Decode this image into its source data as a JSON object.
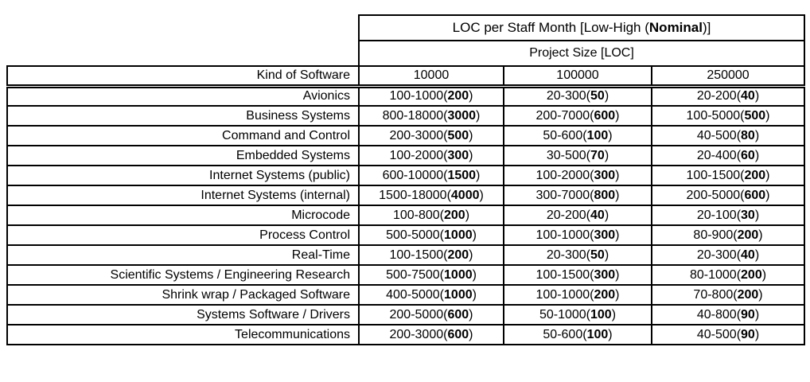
{
  "page": {
    "background_color": "#ffffff",
    "border_color": "#000000",
    "text_color": "#000000"
  },
  "table": {
    "title": {
      "prefix": "LOC per Staff Month [Low-High (",
      "bold": "Nominal",
      "suffix": ")]"
    },
    "subtitle": "Project Size [LOC]",
    "row_header_label": "Kind of Software",
    "column_headers": [
      "10000",
      "100000",
      "250000"
    ],
    "rows": [
      {
        "kind": "Avionics",
        "cells": [
          {
            "range": "100-1000",
            "nominal": "200"
          },
          {
            "range": "20-300",
            "nominal": "50"
          },
          {
            "range": "20-200",
            "nominal": "40"
          }
        ]
      },
      {
        "kind": "Business Systems",
        "cells": [
          {
            "range": "800-18000",
            "nominal": "3000"
          },
          {
            "range": "200-7000",
            "nominal": "600"
          },
          {
            "range": "100-5000",
            "nominal": "500"
          }
        ]
      },
      {
        "kind": "Command and Control",
        "cells": [
          {
            "range": "200-3000",
            "nominal": "500"
          },
          {
            "range": "50-600",
            "nominal": "100"
          },
          {
            "range": "40-500",
            "nominal": "80"
          }
        ]
      },
      {
        "kind": "Embedded Systems",
        "cells": [
          {
            "range": "100-2000",
            "nominal": "300"
          },
          {
            "range": "30-500",
            "nominal": "70"
          },
          {
            "range": "20-400",
            "nominal": "60"
          }
        ]
      },
      {
        "kind": "Internet Systems (public)",
        "cells": [
          {
            "range": "600-10000",
            "nominal": "1500"
          },
          {
            "range": "100-2000",
            "nominal": "300"
          },
          {
            "range": "100-1500",
            "nominal": "200"
          }
        ]
      },
      {
        "kind": "Internet Systems (internal)",
        "cells": [
          {
            "range": "1500-18000",
            "nominal": "4000"
          },
          {
            "range": "300-7000",
            "nominal": "800"
          },
          {
            "range": "200-5000",
            "nominal": "600"
          }
        ]
      },
      {
        "kind": "Microcode",
        "cells": [
          {
            "range": "100-800",
            "nominal": "200"
          },
          {
            "range": "20-200",
            "nominal": "40"
          },
          {
            "range": "20-100",
            "nominal": "30"
          }
        ]
      },
      {
        "kind": "Process Control",
        "cells": [
          {
            "range": "500-5000",
            "nominal": "1000"
          },
          {
            "range": "100-1000",
            "nominal": "300"
          },
          {
            "range": "80-900",
            "nominal": "200"
          }
        ]
      },
      {
        "kind": "Real-Time",
        "cells": [
          {
            "range": "100-1500",
            "nominal": "200"
          },
          {
            "range": "20-300",
            "nominal": "50"
          },
          {
            "range": "20-300",
            "nominal": "40"
          }
        ]
      },
      {
        "kind": "Scientific Systems / Engineering Research",
        "cells": [
          {
            "range": "500-7500",
            "nominal": "1000"
          },
          {
            "range": "100-1500",
            "nominal": "300"
          },
          {
            "range": "80-1000",
            "nominal": "200"
          }
        ]
      },
      {
        "kind": "Shrink wrap / Packaged Software",
        "cells": [
          {
            "range": "400-5000",
            "nominal": "1000"
          },
          {
            "range": "100-1000",
            "nominal": "200"
          },
          {
            "range": "70-800",
            "nominal": "200"
          }
        ]
      },
      {
        "kind": "Systems Software / Drivers",
        "cells": [
          {
            "range": "200-5000",
            "nominal": "600"
          },
          {
            "range": "50-1000",
            "nominal": "100"
          },
          {
            "range": "40-800",
            "nominal": "90"
          }
        ]
      },
      {
        "kind": "Telecommunications",
        "cells": [
          {
            "range": "200-3000",
            "nominal": "600"
          },
          {
            "range": "50-600",
            "nominal": "100"
          },
          {
            "range": "40-500",
            "nominal": "90"
          }
        ]
      }
    ]
  }
}
